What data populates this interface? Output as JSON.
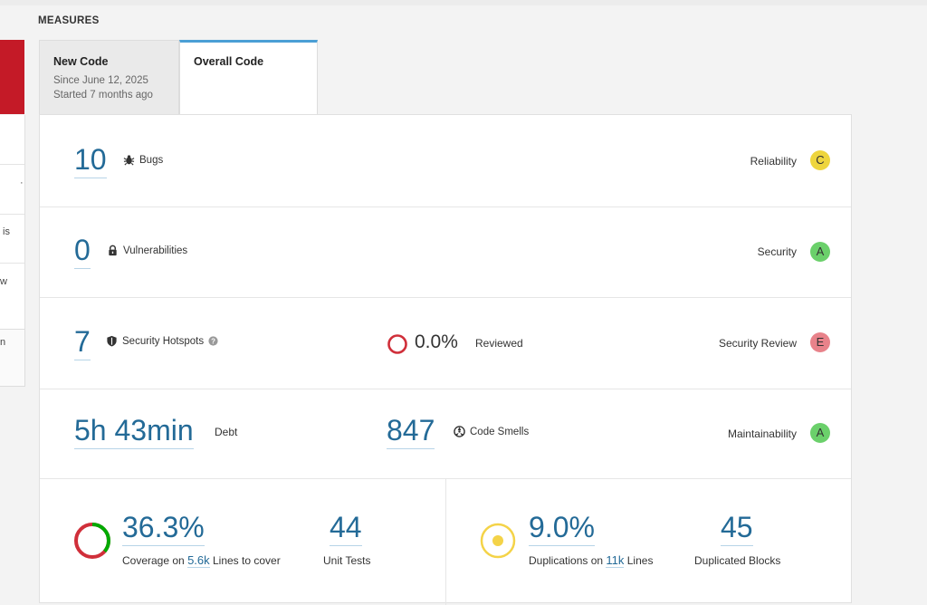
{
  "section_title": "MEASURES",
  "sidebar": {
    "snippets": [
      "is",
      "w",
      "n"
    ]
  },
  "tabs": {
    "new_code": {
      "label": "New Code",
      "since": "Since June 12, 2025",
      "started": "Started 7 months ago"
    },
    "overall_code": {
      "label": "Overall Code"
    }
  },
  "reliability": {
    "value": "10",
    "label": "Bugs",
    "rating_label": "Reliability",
    "rating": "C",
    "rating_color": "#eed53d"
  },
  "security": {
    "value": "0",
    "label": "Vulnerabilities",
    "rating_label": "Security",
    "rating": "A",
    "rating_color": "#6bd06b"
  },
  "hotspots": {
    "value": "7",
    "label": "Security Hotspots",
    "reviewed_value": "0.0%",
    "reviewed_label": "Reviewed",
    "rating_label": "Security Review",
    "rating": "E",
    "rating_color": "#e8828a"
  },
  "maintainability": {
    "debt_value": "5h 43min",
    "debt_label": "Debt",
    "smells_value": "847",
    "smells_label": "Code Smells",
    "rating_label": "Maintainability",
    "rating": "A",
    "rating_color": "#6bd06b"
  },
  "coverage": {
    "value": "36.3%",
    "coverage_pct": 36.3,
    "text_before": "Coverage on",
    "lines": "5.6k",
    "text_after": "Lines to cover",
    "unit_tests_value": "44",
    "unit_tests_label": "Unit Tests"
  },
  "duplications": {
    "value": "9.0%",
    "text_before": "Duplications on",
    "lines": "11k",
    "text_after": "Lines",
    "blocks_value": "45",
    "blocks_label": "Duplicated Blocks"
  },
  "colors": {
    "accent": "#236a97",
    "tab_active": "#4b9fd5",
    "sidebar_red": "#c41a27"
  }
}
